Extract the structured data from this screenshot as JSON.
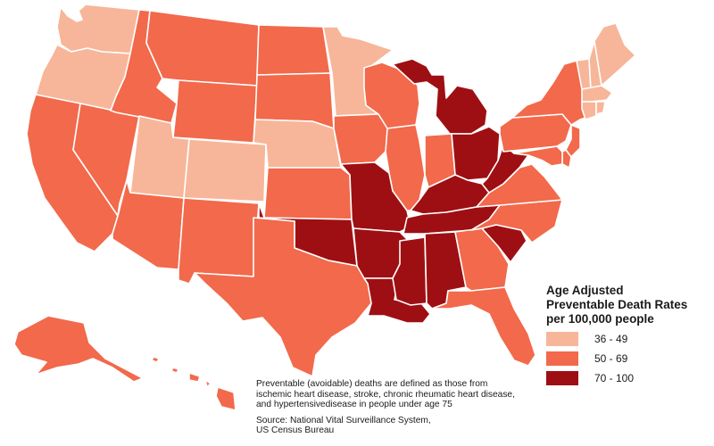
{
  "legend": {
    "title_lines": [
      "Age Adjusted",
      "Preventable Death Rates",
      "per 100,000 people"
    ],
    "items": [
      {
        "label": "36 - 49",
        "color": "#f7b699"
      },
      {
        "label": "50 - 69",
        "color": "#f2694b"
      },
      {
        "label": "70 - 100",
        "color": "#9e0f13"
      }
    ]
  },
  "note": {
    "definition_lines": [
      "Preventable (avoidable) deaths are defined as those from",
      "ischemic heart disease, stroke, chronic rheumatic heart disease,",
      "and hypertensivedisease in people under age 75"
    ],
    "source_lines": [
      "Source: National Vital Surveillance System,",
      "US Census Bureau"
    ]
  },
  "map_data": {
    "rate_classes": {
      "low": "36 - 49",
      "mid": "50 - 69",
      "high": "70 - 100"
    },
    "states": {
      "WA": "low",
      "OR": "low",
      "UT": "low",
      "CO": "low",
      "NE": "low",
      "MN": "low",
      "VT": "low",
      "NH": "low",
      "ME": "low",
      "MA": "low",
      "CT": "low",
      "RI": "low",
      "ID": "mid",
      "MT": "mid",
      "WY": "mid",
      "ND": "mid",
      "SD": "mid",
      "CA": "mid",
      "NV": "mid",
      "AZ": "mid",
      "NM": "mid",
      "TX": "mid",
      "KS": "mid",
      "IA": "mid",
      "WI": "mid",
      "IL": "mid",
      "IN": "mid",
      "PA": "mid",
      "NY": "mid",
      "NJ": "mid",
      "DE": "mid",
      "MD": "mid",
      "VA": "mid",
      "NC": "mid",
      "GA": "mid",
      "FL": "mid",
      "AK": "mid",
      "HI": "mid",
      "MI": "high",
      "OH": "high",
      "WV": "high",
      "KY": "high",
      "TN": "high",
      "MO": "high",
      "AR": "high",
      "OK": "high",
      "LA": "high",
      "MS": "high",
      "AL": "high",
      "SC": "high"
    }
  }
}
